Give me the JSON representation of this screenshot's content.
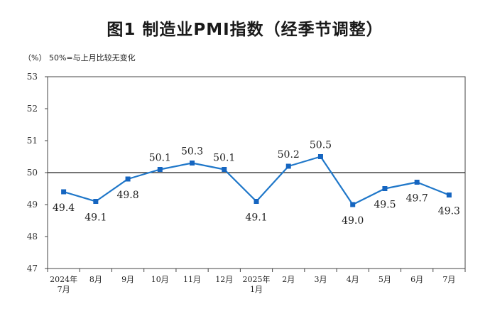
{
  "chart_data": {
    "type": "line",
    "title": "图1  制造业PMI指数（经季节调整）",
    "unit_note": "（%）  50%=与上月比较无变化",
    "categories": [
      [
        "2024年",
        "7月"
      ],
      [
        "8月"
      ],
      [
        "9月"
      ],
      [
        "10月"
      ],
      [
        "11月"
      ],
      [
        "12月"
      ],
      [
        "2025年",
        "1月"
      ],
      [
        "2月"
      ],
      [
        "3月"
      ],
      [
        "4月"
      ],
      [
        "5月"
      ],
      [
        "6月"
      ],
      [
        "7月"
      ]
    ],
    "values": [
      49.4,
      49.1,
      49.8,
      50.1,
      50.3,
      50.1,
      49.1,
      50.2,
      50.5,
      49.0,
      49.5,
      49.7,
      49.3
    ],
    "data_labels": [
      "49.4",
      "49.1",
      "49.8",
      "50.1",
      "50.3",
      "50.1",
      "49.1",
      "50.2",
      "50.5",
      "49.0",
      "49.5",
      "49.7",
      "49.3"
    ],
    "label_positions": [
      "below",
      "below",
      "below",
      "above",
      "above",
      "above",
      "below",
      "above",
      "above",
      "below",
      "below",
      "below",
      "below"
    ],
    "ylim": [
      47,
      53
    ],
    "yticks": [
      "47",
      "48",
      "49",
      "50",
      "51",
      "52",
      "53"
    ],
    "reference_line": 50,
    "xlabel": "",
    "ylabel": "%",
    "colors": {
      "line": "#1f77c9",
      "marker": "#1565c0",
      "axis": "#444444",
      "reference": "#222222"
    }
  }
}
